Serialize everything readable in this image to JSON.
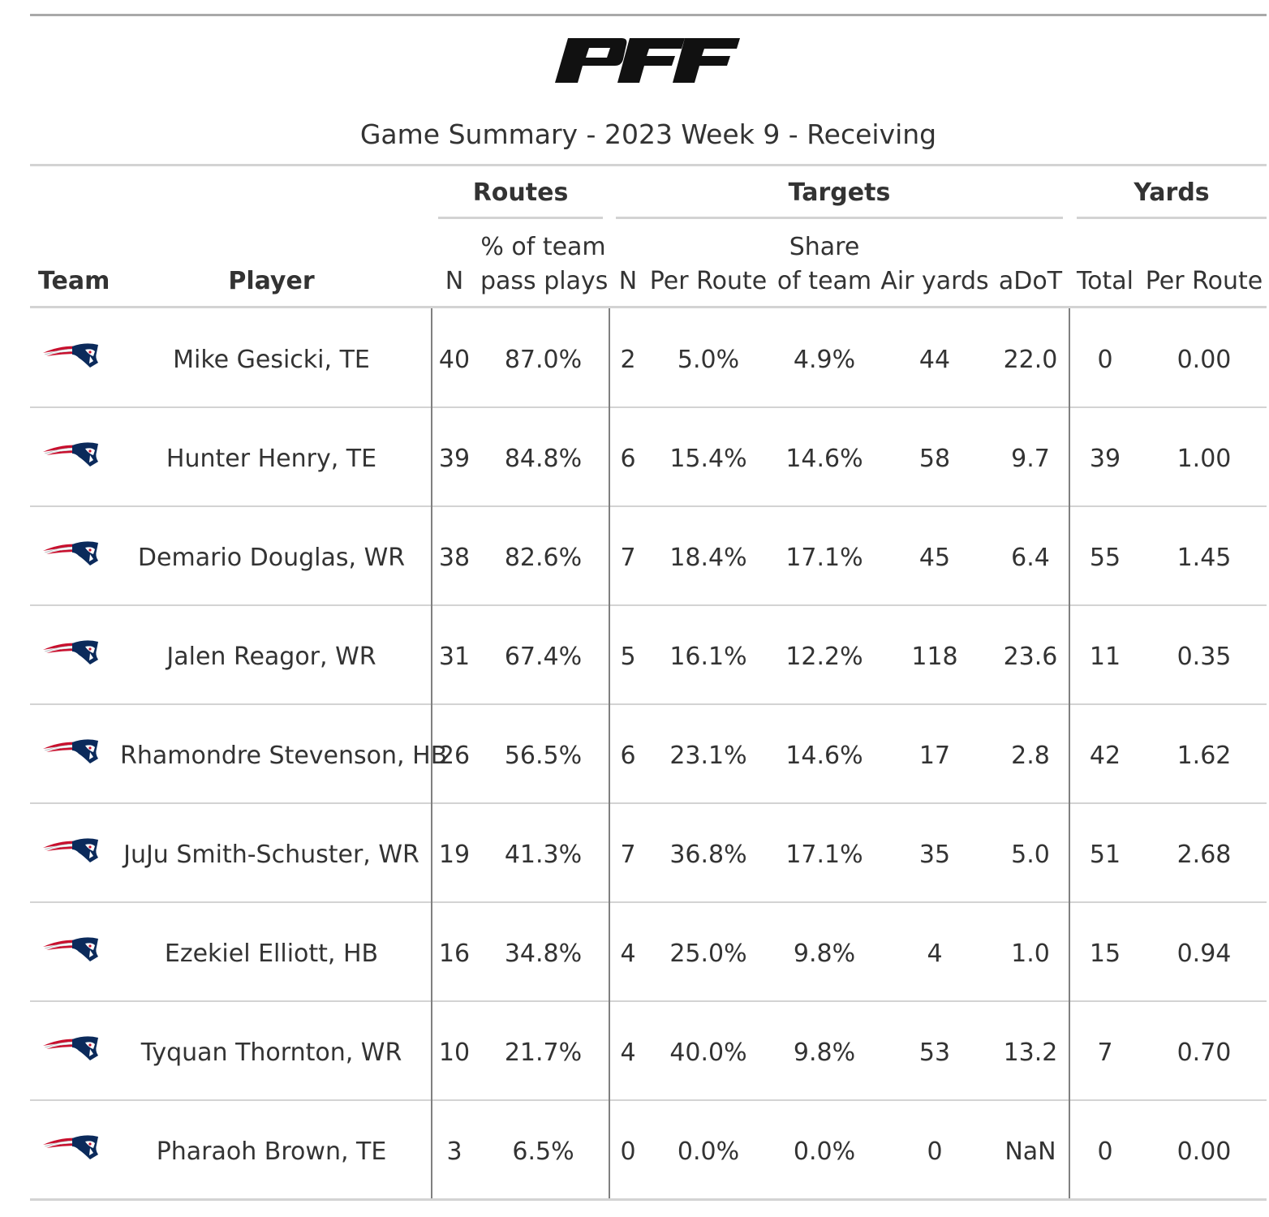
{
  "brand": {
    "logo_name": "pff-logo",
    "color": "#111111"
  },
  "subtitle": "Game Summary - 2023 Week 9 - Receiving",
  "spanners": {
    "routes": "Routes",
    "targets": "Targets",
    "yards": "Yards"
  },
  "columns": {
    "team": "Team",
    "player": "Player",
    "routes_n": "N",
    "routes_pct_line1": "% of team",
    "routes_pct_line2": "pass plays",
    "targets_n": "N",
    "targets_per_route": "Per Route",
    "share_line1": "Share",
    "share_line2": "of team",
    "air_yards": "Air yards",
    "adot": "aDoT",
    "yards_total": "Total",
    "yards_per_route": "Per Route"
  },
  "team_logo": {
    "icon": "patriots-logo-icon",
    "navy": "#0b2a5b",
    "red": "#c8102e",
    "silver": "#b0b7bc"
  },
  "rows": [
    {
      "player": "Mike Gesicki, TE",
      "routes_n": "40",
      "routes_pct": "87.0%",
      "targets_n": "2",
      "targets_per_route": "5.0%",
      "share": "4.9%",
      "air_yards": "44",
      "adot": "22.0",
      "yards_total": "0",
      "yards_per_route": "0.00"
    },
    {
      "player": "Hunter Henry, TE",
      "routes_n": "39",
      "routes_pct": "84.8%",
      "targets_n": "6",
      "targets_per_route": "15.4%",
      "share": "14.6%",
      "air_yards": "58",
      "adot": "9.7",
      "yards_total": "39",
      "yards_per_route": "1.00"
    },
    {
      "player": "Demario Douglas, WR",
      "routes_n": "38",
      "routes_pct": "82.6%",
      "targets_n": "7",
      "targets_per_route": "18.4%",
      "share": "17.1%",
      "air_yards": "45",
      "adot": "6.4",
      "yards_total": "55",
      "yards_per_route": "1.45"
    },
    {
      "player": "Jalen Reagor, WR",
      "routes_n": "31",
      "routes_pct": "67.4%",
      "targets_n": "5",
      "targets_per_route": "16.1%",
      "share": "12.2%",
      "air_yards": "118",
      "adot": "23.6",
      "yards_total": "11",
      "yards_per_route": "0.35"
    },
    {
      "player": "Rhamondre Stevenson, HB",
      "routes_n": "26",
      "routes_pct": "56.5%",
      "targets_n": "6",
      "targets_per_route": "23.1%",
      "share": "14.6%",
      "air_yards": "17",
      "adot": "2.8",
      "yards_total": "42",
      "yards_per_route": "1.62"
    },
    {
      "player": "JuJu Smith-Schuster, WR",
      "routes_n": "19",
      "routes_pct": "41.3%",
      "targets_n": "7",
      "targets_per_route": "36.8%",
      "share": "17.1%",
      "air_yards": "35",
      "adot": "5.0",
      "yards_total": "51",
      "yards_per_route": "2.68"
    },
    {
      "player": "Ezekiel Elliott, HB",
      "routes_n": "16",
      "routes_pct": "34.8%",
      "targets_n": "4",
      "targets_per_route": "25.0%",
      "share": "9.8%",
      "air_yards": "4",
      "adot": "1.0",
      "yards_total": "15",
      "yards_per_route": "0.94"
    },
    {
      "player": "Tyquan Thornton, WR",
      "routes_n": "10",
      "routes_pct": "21.7%",
      "targets_n": "4",
      "targets_per_route": "40.0%",
      "share": "9.8%",
      "air_yards": "53",
      "adot": "13.2",
      "yards_total": "7",
      "yards_per_route": "0.70"
    },
    {
      "player": "Pharaoh Brown, TE",
      "routes_n": "3",
      "routes_pct": "6.5%",
      "targets_n": "0",
      "targets_per_route": "0.0%",
      "share": "0.0%",
      "air_yards": "0",
      "adot": "NaN",
      "yards_total": "0",
      "yards_per_route": "0.00"
    }
  ]
}
